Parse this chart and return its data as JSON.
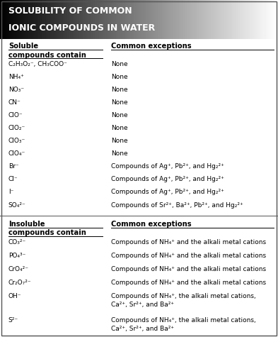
{
  "title_line1": "SOLUBILITY OF COMMON",
  "title_line2": "IONIC COMPOUNDS IN WATER",
  "title_color": "#ffffff",
  "bg_color": "#f5f5f5",
  "figsize": [
    3.93,
    4.75
  ],
  "dpi": 100,
  "soluble_rows": [
    [
      "C₂H₃O₂⁻, CH₃COO⁻",
      "None"
    ],
    [
      "NH₄⁺",
      "None"
    ],
    [
      "NO₃⁻",
      "None"
    ],
    [
      "CN⁻",
      "None"
    ],
    [
      "ClO⁻",
      "None"
    ],
    [
      "ClO₂⁻",
      "None"
    ],
    [
      "ClO₃⁻",
      "None"
    ],
    [
      "ClO₄⁻",
      "None"
    ],
    [
      "Br⁻",
      "Compounds of Ag⁺, Pb²⁺, and Hg₂²⁺"
    ],
    [
      "Cl⁻",
      "Compounds of Ag⁺, Pb²⁺, and Hg₂²⁺"
    ],
    [
      "I⁻",
      "Compounds of Ag⁺, Pb²⁺, and Hg₂²⁺"
    ],
    [
      "SO₄²⁻",
      "Compounds of Sr²⁺, Ba²⁺, Pb²⁺, and Hg₂²⁺"
    ]
  ],
  "insoluble_rows": [
    [
      "CO₃²⁻",
      "Compounds of NH₄⁺ and the alkali metal cations"
    ],
    [
      "PO₄³⁻",
      "Compounds of NH₄⁺ and the alkali metal cations"
    ],
    [
      "CrO₄²⁻",
      "Compounds of NH₄⁺ and the alkali metal cations"
    ],
    [
      "Cr₂O₇²⁻",
      "Compounds of NH₄⁺ and the alkali metal cations"
    ],
    [
      "OH⁻",
      "Compounds of NH₄⁺, the alkali metal cations,\nCa²⁺, Sr²⁺, and Ba²⁺"
    ],
    [
      "S²⁻",
      "Compounds of NH₄⁺, the alkali metal cations,\nCa²⁺, Sr²⁺, and Ba²⁺"
    ]
  ]
}
